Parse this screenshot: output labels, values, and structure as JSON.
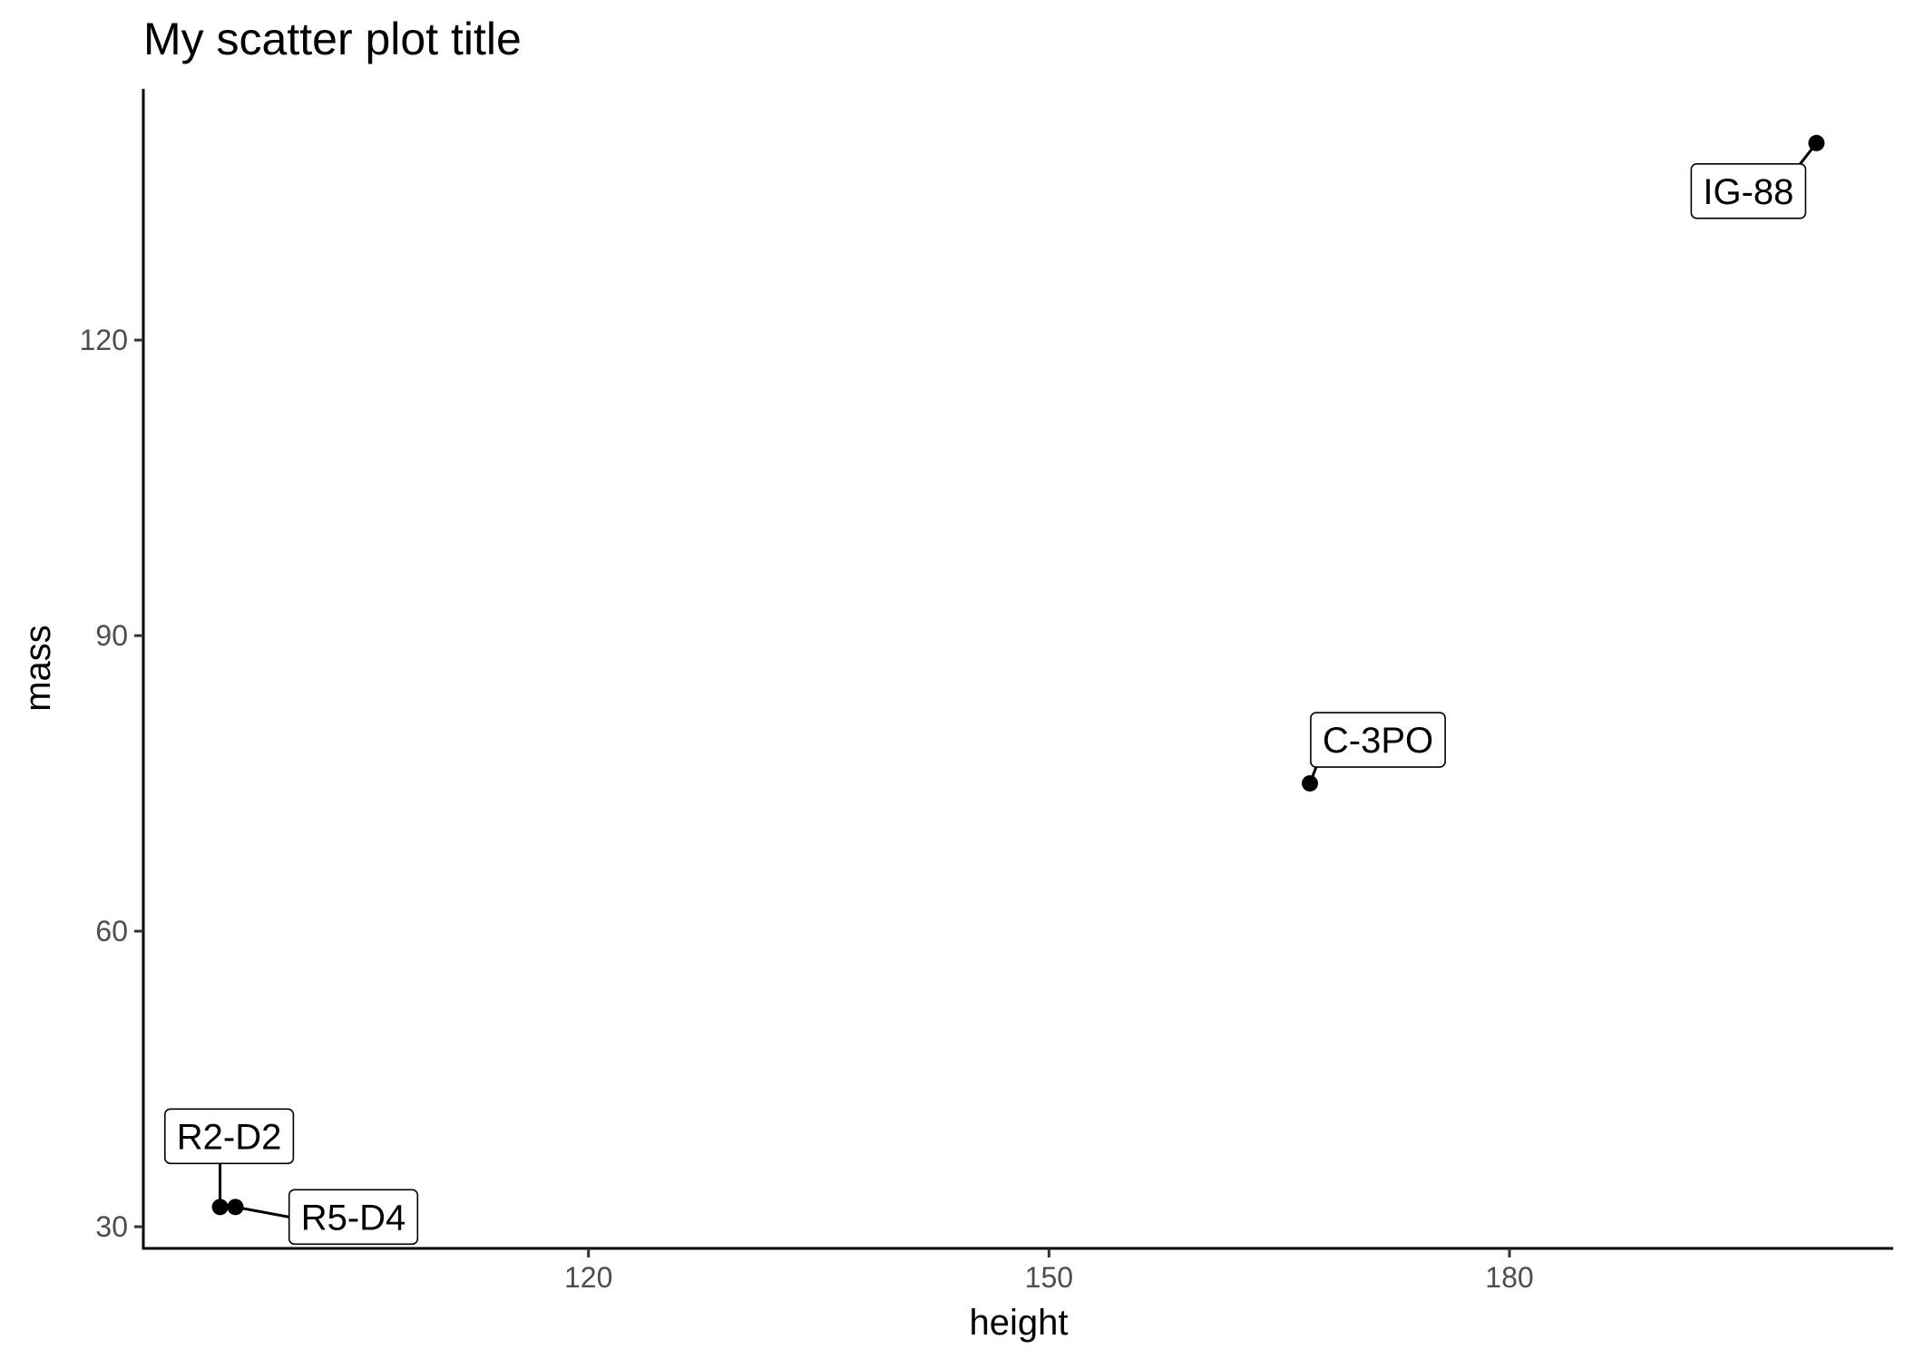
{
  "chart_data": {
    "type": "scatter",
    "title": "My scatter plot title",
    "xlabel": "height",
    "ylabel": "mass",
    "xlim": [
      91,
      205
    ],
    "ylim": [
      27.8,
      145.5
    ],
    "xticks": [
      120,
      150,
      180
    ],
    "yticks": [
      30,
      60,
      90,
      120
    ],
    "xtick_labels": [
      "120",
      "150",
      "180"
    ],
    "ytick_labels": [
      "30",
      "60",
      "90",
      "120"
    ],
    "grid": false,
    "legend": "none",
    "point_color": "#000000",
    "points": [
      {
        "x": 96,
        "y": 32,
        "label": "R2-D2"
      },
      {
        "x": 97,
        "y": 32,
        "label": "R5-D4"
      },
      {
        "x": 167,
        "y": 75,
        "label": "C-3PO"
      },
      {
        "x": 200,
        "y": 140,
        "label": "IG-88"
      }
    ]
  }
}
